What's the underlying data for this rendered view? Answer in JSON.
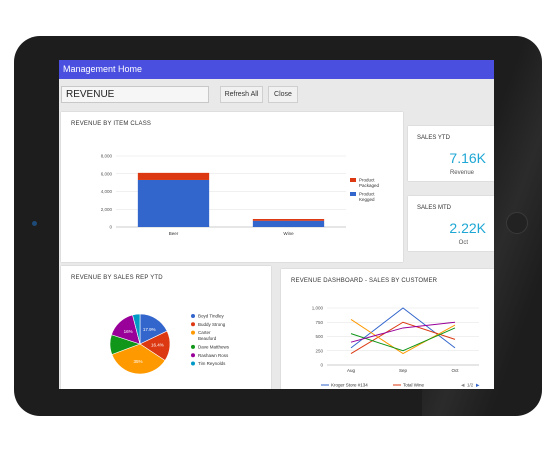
{
  "app": {
    "title": "Management Home"
  },
  "toolbar": {
    "search_value": "REVENUE",
    "refresh_label": "Refresh All",
    "close_label": "Close"
  },
  "cards": {
    "item_class": {
      "title": "REVENUE BY ITEM CLASS"
    },
    "sales_ytd": {
      "title": "SALES YTD",
      "value": "7.16K",
      "sub": "Revenue"
    },
    "sales_mtd": {
      "title": "SALES MTD",
      "value": "2.22K",
      "sub": "Oct"
    },
    "sales_rep": {
      "title": "REVENUE BY SALES REP YTD"
    },
    "customer": {
      "title": "REVENUE DASHBOARD - SALES BY CUSTOMER"
    }
  },
  "chart_data": [
    {
      "type": "bar",
      "title": "REVENUE BY ITEM CLASS",
      "categories": [
        "Beer",
        "Wine"
      ],
      "ylim": [
        0,
        8000
      ],
      "yticks": [
        "0",
        "2,000",
        "4,000",
        "6,000",
        "8,000"
      ],
      "stacked": true,
      "series": [
        {
          "name": "Product Kegged",
          "values": [
            5300,
            700
          ],
          "color": "#3366cc"
        },
        {
          "name": "Product Packaged",
          "values": [
            800,
            200
          ],
          "color": "#dc3912"
        }
      ],
      "legend": "right",
      "grid": true
    },
    {
      "type": "pie",
      "title": "REVENUE BY SALES REP YTD",
      "slices": [
        {
          "name": "Boyd Tindley",
          "value": 17.9,
          "label": "17.9%",
          "color": "#3366cc"
        },
        {
          "name": "Buddy Strong",
          "value": 16.4,
          "label": "16.4%",
          "color": "#dc3912"
        },
        {
          "name": "Carter Beauford",
          "value": 35,
          "label": "35%",
          "color": "#ff9900"
        },
        {
          "name": "Dave Matthews",
          "value": 10.7,
          "label": "",
          "color": "#109618"
        },
        {
          "name": "Rashawn Ross",
          "value": 16,
          "label": "16%",
          "color": "#990099"
        },
        {
          "name": "Tim Reynolds",
          "value": 4,
          "label": "",
          "color": "#0099c6"
        }
      ],
      "legend": "right"
    },
    {
      "type": "line",
      "title": "REVENUE DASHBOARD - SALES BY CUSTOMER",
      "categories": [
        "Aug",
        "Sep",
        "Oct"
      ],
      "ylim": [
        0,
        1000
      ],
      "yticks": [
        "0",
        "250",
        "500",
        "750",
        "1,000"
      ],
      "series": [
        {
          "name": "Kroger Store #134",
          "values": [
            300,
            1000,
            300
          ],
          "color": "#3366cc"
        },
        {
          "name": "Total Wine",
          "values": [
            200,
            750,
            450
          ],
          "color": "#dc3912"
        },
        {
          "name": "",
          "values": [
            800,
            200,
            700
          ],
          "color": "#ff9900"
        },
        {
          "name": "",
          "values": [
            550,
            250,
            650
          ],
          "color": "#109618"
        },
        {
          "name": "",
          "values": [
            400,
            650,
            750
          ],
          "color": "#990099"
        }
      ],
      "legend": "bottom",
      "pager": "1/2",
      "grid": true
    }
  ]
}
